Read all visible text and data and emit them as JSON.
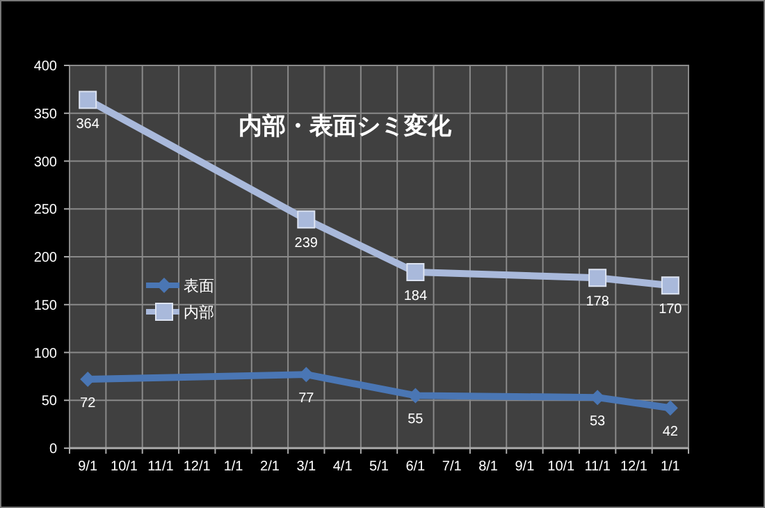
{
  "chart_data": {
    "type": "line",
    "title": "内部・表面シミ変化",
    "categories": [
      "9/1",
      "10/1",
      "11/1",
      "12/1",
      "1/1",
      "2/1",
      "3/1",
      "4/1",
      "5/1",
      "6/1",
      "7/1",
      "8/1",
      "9/1",
      "10/1",
      "11/1",
      "12/1",
      "1/1"
    ],
    "series": [
      {
        "name": "表面",
        "color": "#4a76b4",
        "marker": "diamond",
        "values": [
          72,
          null,
          null,
          null,
          null,
          null,
          77,
          null,
          null,
          55,
          null,
          null,
          null,
          null,
          53,
          null,
          42
        ]
      },
      {
        "name": "内部",
        "color": "#a9b9db",
        "marker": "square",
        "values": [
          364,
          null,
          null,
          null,
          null,
          null,
          239,
          null,
          null,
          184,
          null,
          null,
          null,
          null,
          178,
          null,
          170
        ]
      }
    ],
    "ylim": [
      0,
      400
    ],
    "yticks": [
      0,
      50,
      100,
      150,
      200,
      250,
      300,
      350,
      400
    ],
    "grid": true,
    "legend": "left",
    "data_labels": true
  }
}
